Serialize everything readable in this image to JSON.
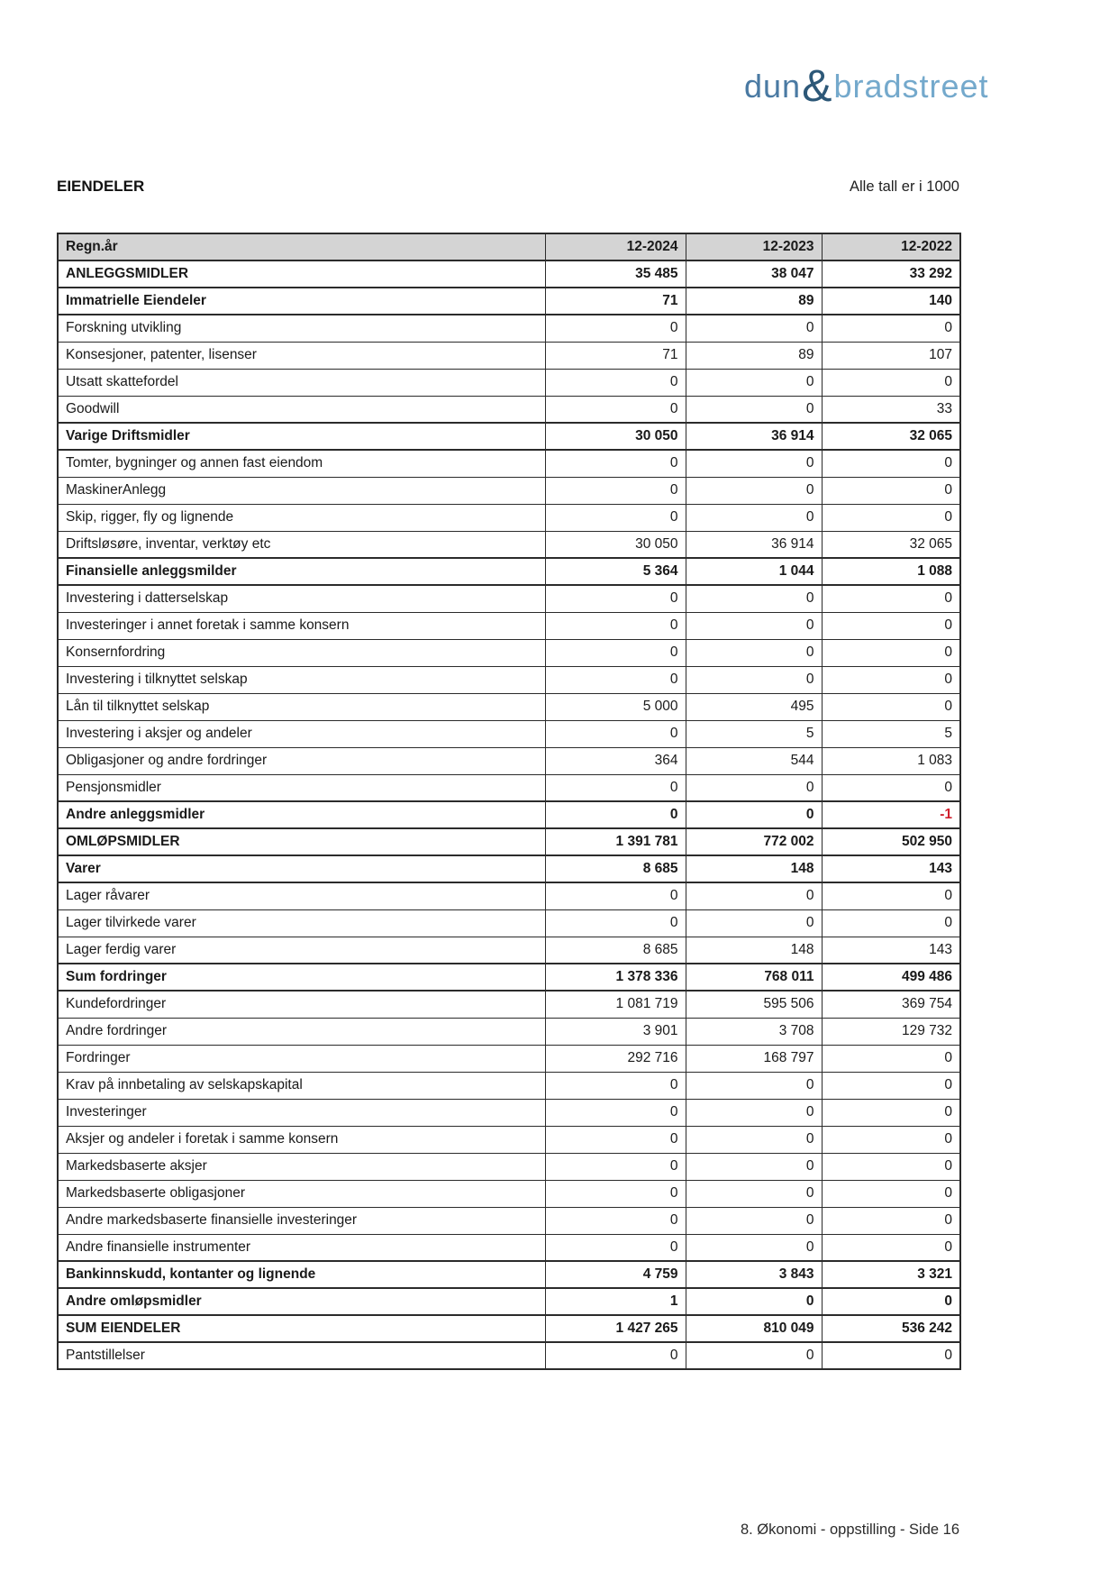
{
  "page": {
    "logo": {
      "part1": "dun",
      "amp": "&",
      "part2": "bradstreet",
      "color_dun": "#4a7aa3",
      "color_amp": "#2d5878",
      "color_bradstreet": "#74a9cc"
    },
    "section_title": "EIENDELER",
    "units_note": "Alle tall er i 1000",
    "footer": "8. Økonomi - oppstilling - Side 16"
  },
  "table": {
    "header": {
      "label": "Regn.år",
      "columns": [
        "12-2024",
        "12-2023",
        "12-2022"
      ]
    },
    "header_bg": "#d4d4d4",
    "negative_color": "#d0202e",
    "rows": [
      {
        "label": "ANLEGGSMIDLER",
        "bold": true,
        "values": [
          "35 485",
          "38 047",
          "33 292"
        ]
      },
      {
        "label": "Immatrielle Eiendeler",
        "bold": true,
        "values": [
          "71",
          "89",
          "140"
        ]
      },
      {
        "label": "Forskning utvikling",
        "bold": false,
        "values": [
          "0",
          "0",
          "0"
        ]
      },
      {
        "label": "Konsesjoner, patenter, lisenser",
        "bold": false,
        "values": [
          "71",
          "89",
          "107"
        ]
      },
      {
        "label": "Utsatt skattefordel",
        "bold": false,
        "values": [
          "0",
          "0",
          "0"
        ]
      },
      {
        "label": "Goodwill",
        "bold": false,
        "values": [
          "0",
          "0",
          "33"
        ]
      },
      {
        "label": "Varige Driftsmidler",
        "bold": true,
        "values": [
          "30 050",
          "36 914",
          "32 065"
        ]
      },
      {
        "label": "Tomter, bygninger og annen fast eiendom",
        "bold": false,
        "values": [
          "0",
          "0",
          "0"
        ]
      },
      {
        "label": "MaskinerAnlegg",
        "bold": false,
        "values": [
          "0",
          "0",
          "0"
        ]
      },
      {
        "label": "Skip, rigger, fly og lignende",
        "bold": false,
        "values": [
          "0",
          "0",
          "0"
        ]
      },
      {
        "label": "Driftsløsøre, inventar, verktøy etc",
        "bold": false,
        "values": [
          "30 050",
          "36 914",
          "32 065"
        ]
      },
      {
        "label": "Finansielle anleggsmilder",
        "bold": true,
        "values": [
          "5 364",
          "1 044",
          "1 088"
        ]
      },
      {
        "label": "Investering i datterselskap",
        "bold": false,
        "values": [
          "0",
          "0",
          "0"
        ]
      },
      {
        "label": "Investeringer i annet foretak i samme konsern",
        "bold": false,
        "values": [
          "0",
          "0",
          "0"
        ]
      },
      {
        "label": "Konsernfordring",
        "bold": false,
        "values": [
          "0",
          "0",
          "0"
        ]
      },
      {
        "label": "Investering i tilknyttet selskap",
        "bold": false,
        "values": [
          "0",
          "0",
          "0"
        ]
      },
      {
        "label": "Lån til tilknyttet selskap",
        "bold": false,
        "values": [
          "5 000",
          "495",
          "0"
        ]
      },
      {
        "label": "Investering i aksjer og andeler",
        "bold": false,
        "values": [
          "0",
          "5",
          "5"
        ]
      },
      {
        "label": "Obligasjoner og andre fordringer",
        "bold": false,
        "values": [
          "364",
          "544",
          "1 083"
        ]
      },
      {
        "label": "Pensjonsmidler",
        "bold": false,
        "values": [
          "0",
          "0",
          "0"
        ]
      },
      {
        "label": "Andre anleggsmidler",
        "bold": true,
        "values": [
          "0",
          "0",
          "-1"
        ]
      },
      {
        "label": "OMLØPSMIDLER",
        "bold": true,
        "values": [
          "1 391 781",
          "772 002",
          "502 950"
        ]
      },
      {
        "label": "Varer",
        "bold": true,
        "values": [
          "8 685",
          "148",
          "143"
        ]
      },
      {
        "label": "Lager råvarer",
        "bold": false,
        "values": [
          "0",
          "0",
          "0"
        ]
      },
      {
        "label": "Lager tilvirkede varer",
        "bold": false,
        "values": [
          "0",
          "0",
          "0"
        ]
      },
      {
        "label": "Lager ferdig varer",
        "bold": false,
        "values": [
          "8 685",
          "148",
          "143"
        ]
      },
      {
        "label": "Sum fordringer",
        "bold": true,
        "values": [
          "1 378 336",
          "768 011",
          "499 486"
        ]
      },
      {
        "label": "Kundefordringer",
        "bold": false,
        "values": [
          "1 081 719",
          "595 506",
          "369 754"
        ]
      },
      {
        "label": "Andre fordringer",
        "bold": false,
        "values": [
          "3 901",
          "3 708",
          "129 732"
        ]
      },
      {
        "label": "Fordringer",
        "bold": false,
        "values": [
          "292 716",
          "168 797",
          "0"
        ]
      },
      {
        "label": "Krav på innbetaling av selskapskapital",
        "bold": false,
        "values": [
          "0",
          "0",
          "0"
        ]
      },
      {
        "label": "Investeringer",
        "bold": false,
        "values": [
          "0",
          "0",
          "0"
        ]
      },
      {
        "label": "Aksjer og andeler i foretak i samme konsern",
        "bold": false,
        "values": [
          "0",
          "0",
          "0"
        ]
      },
      {
        "label": "Markedsbaserte aksjer",
        "bold": false,
        "values": [
          "0",
          "0",
          "0"
        ]
      },
      {
        "label": "Markedsbaserte obligasjoner",
        "bold": false,
        "values": [
          "0",
          "0",
          "0"
        ]
      },
      {
        "label": "Andre markedsbaserte finansielle investeringer",
        "bold": false,
        "values": [
          "0",
          "0",
          "0"
        ]
      },
      {
        "label": "Andre finansielle instrumenter",
        "bold": false,
        "values": [
          "0",
          "0",
          "0"
        ]
      },
      {
        "label": "Bankinnskudd, kontanter og lignende",
        "bold": true,
        "values": [
          "4 759",
          "3 843",
          "3 321"
        ]
      },
      {
        "label": "Andre omløpsmidler",
        "bold": true,
        "values": [
          "1",
          "0",
          "0"
        ]
      },
      {
        "label": "SUM EIENDELER",
        "bold": true,
        "values": [
          "1 427 265",
          "810 049",
          "536 242"
        ]
      },
      {
        "label": "Pantstillelser",
        "bold": false,
        "values": [
          "0",
          "0",
          "0"
        ]
      }
    ]
  }
}
